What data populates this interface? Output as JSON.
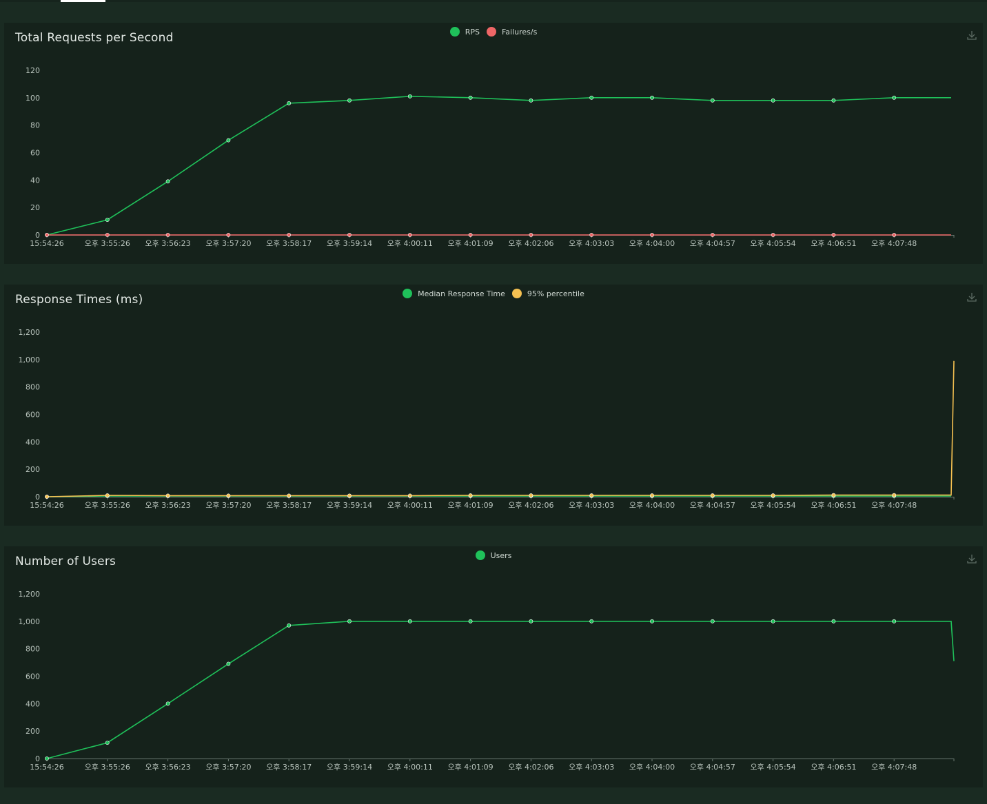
{
  "colors": {
    "green": "#1fc15a",
    "red": "#ee6666",
    "yellow": "#f5c151",
    "axis": "#6b7a72",
    "grid": "#243a2f"
  },
  "icons": {
    "download": "download-icon"
  },
  "x_labels": [
    "15:54:26",
    "오후 3:55:26",
    "오후 3:56:23",
    "오후 3:57:20",
    "오후 3:58:17",
    "오후 3:59:14",
    "오후 4:00:11",
    "오후 4:01:09",
    "오후 4:02:06",
    "오후 4:03:03",
    "오후 4:04:00",
    "오후 4:04:57",
    "오후 4:05:54",
    "오후 4:06:51",
    "오후 4:07:48"
  ],
  "panels": {
    "rps": {
      "title": "Total Requests per Second",
      "legend": [
        {
          "label": "RPS",
          "color": "#1fc15a"
        },
        {
          "label": "Failures/s",
          "color": "#ee6666"
        }
      ]
    },
    "response": {
      "title": "Response Times (ms)",
      "legend": [
        {
          "label": "Median Response Time",
          "color": "#1fc15a"
        },
        {
          "label": "95% percentile",
          "color": "#f5c151"
        }
      ]
    },
    "users": {
      "title": "Number of Users",
      "legend": [
        {
          "label": "Users",
          "color": "#1fc15a"
        }
      ]
    }
  },
  "chart_data": [
    {
      "type": "line",
      "title": "Total Requests per Second",
      "y_ticks": [
        "0",
        "20",
        "40",
        "60",
        "80",
        "100",
        "120"
      ],
      "ylim": [
        0,
        120
      ],
      "categories": [
        "15:54:26",
        "오후 3:55:26",
        "오후 3:56:23",
        "오후 3:57:20",
        "오후 3:58:17",
        "오후 3:59:14",
        "오후 4:00:11",
        "오후 4:01:09",
        "오후 4:02:06",
        "오후 4:03:03",
        "오후 4:04:00",
        "오후 4:04:57",
        "오후 4:05:54",
        "오후 4:06:51",
        "오후 4:07:48"
      ],
      "series": [
        {
          "name": "RPS",
          "color": "#1fc15a",
          "values": [
            0,
            11,
            39,
            69,
            96,
            98,
            101,
            100,
            98,
            100,
            100,
            98,
            98,
            98,
            100
          ]
        },
        {
          "name": "Failures/s",
          "color": "#ee6666",
          "values": [
            0,
            0,
            0,
            0,
            0,
            0,
            0,
            0,
            0,
            0,
            0,
            0,
            0,
            0,
            0
          ]
        }
      ],
      "legend_position": "top-center",
      "grid": false
    },
    {
      "type": "line",
      "title": "Response Times (ms)",
      "y_ticks": [
        "0",
        "200",
        "400",
        "600",
        "800",
        "1,000",
        "1,200"
      ],
      "ylim": [
        0,
        1200
      ],
      "categories": [
        "15:54:26",
        "오후 3:55:26",
        "오후 3:56:23",
        "오후 3:57:20",
        "오후 3:58:17",
        "오후 3:59:14",
        "오후 4:00:11",
        "오후 4:01:09",
        "오후 4:02:06",
        "오후 4:03:03",
        "오후 4:04:00",
        "오후 4:04:57",
        "오후 4:05:54",
        "오후 4:06:51",
        "오후 4:07:48"
      ],
      "series": [
        {
          "name": "Median Response Time",
          "color": "#1fc15a",
          "values": [
            0,
            5,
            5,
            5,
            5,
            5,
            5,
            5,
            5,
            5,
            5,
            5,
            5,
            5,
            5
          ]
        },
        {
          "name": "95% percentile",
          "color": "#f5c151",
          "values": [
            0,
            10,
            8,
            8,
            8,
            8,
            8,
            10,
            10,
            10,
            10,
            10,
            10,
            12,
            12
          ]
        }
      ],
      "final_spike": {
        "series": "95% percentile",
        "value": 990
      },
      "legend_position": "top-center",
      "grid": false
    },
    {
      "type": "line",
      "title": "Number of Users",
      "y_ticks": [
        "0",
        "200",
        "400",
        "600",
        "800",
        "1,000",
        "1,200"
      ],
      "ylim": [
        0,
        1200
      ],
      "categories": [
        "15:54:26",
        "오후 3:55:26",
        "오후 3:56:23",
        "오후 3:57:20",
        "오후 3:58:17",
        "오후 3:59:14",
        "오후 4:00:11",
        "오후 4:01:09",
        "오후 4:02:06",
        "오후 4:03:03",
        "오후 4:04:00",
        "오후 4:04:57",
        "오후 4:05:54",
        "오후 4:06:51",
        "오후 4:07:48"
      ],
      "series": [
        {
          "name": "Users",
          "color": "#1fc15a",
          "values": [
            0,
            115,
            400,
            690,
            970,
            1000,
            1000,
            1000,
            1000,
            1000,
            1000,
            1000,
            1000,
            1000,
            1000
          ]
        }
      ],
      "final_drop": {
        "series": "Users",
        "value": 710
      },
      "legend_position": "top-center",
      "grid": false
    }
  ]
}
